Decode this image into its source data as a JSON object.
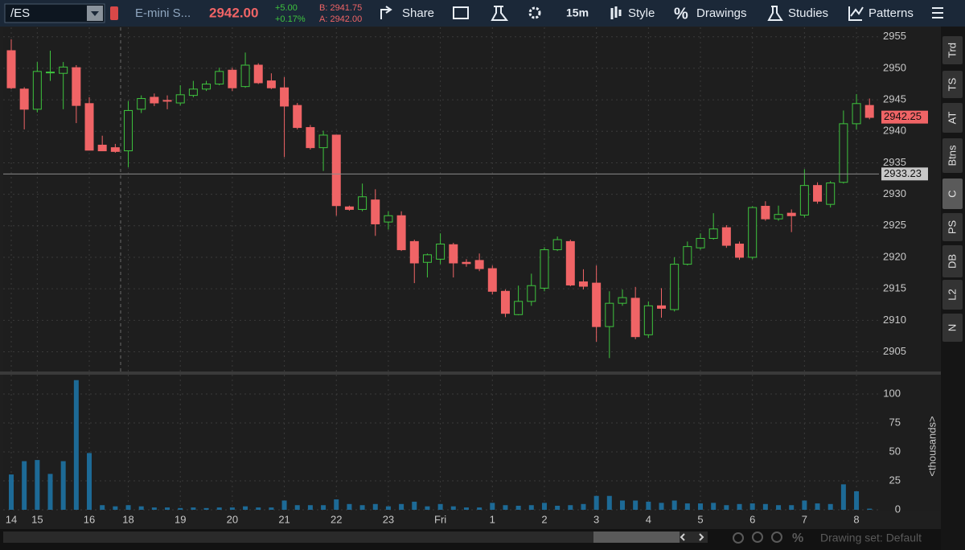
{
  "toolbar": {
    "symbol": "/ES",
    "description": "E-mini S...",
    "last": "2942.00",
    "change": "+5.00",
    "change_pct": "+0.17%",
    "bid": "B: 2941.75",
    "ask": "A: 2942.00",
    "share": "Share",
    "interval": "15m",
    "style": "Style",
    "drawings": "Drawings",
    "studies": "Studies",
    "patterns": "Patterns"
  },
  "side_tabs": [
    "Trd",
    "TS",
    "AT",
    "Btns",
    "C",
    "PS",
    "DB",
    "L2",
    "N"
  ],
  "footer": {
    "drawing_set": "Drawing set: Default"
  },
  "chart_data": [
    {
      "type": "candlestick",
      "up_color": "#3ec43e",
      "down_color": "#f06466",
      "grid": true,
      "categories": [
        "14",
        null,
        "15",
        null,
        null,
        null,
        "16",
        null,
        null,
        "18",
        null,
        null,
        null,
        "19",
        null,
        null,
        null,
        "20",
        null,
        null,
        null,
        "21",
        null,
        null,
        null,
        "22",
        null,
        null,
        null,
        "23",
        null,
        null,
        null,
        "Fri",
        null,
        null,
        null,
        "1",
        null,
        null,
        null,
        "2",
        null,
        null,
        null,
        "3",
        null,
        null,
        null,
        "4",
        null,
        null,
        null,
        "5",
        null,
        null,
        null,
        "6",
        null,
        null,
        null,
        "7",
        null,
        null,
        null,
        "8",
        null
      ],
      "open": [
        2952.8,
        2946.7,
        2943.5,
        2949.3,
        2949.2,
        2950.1,
        2944.4,
        2937.8,
        2937.4,
        2936.9,
        2943.5,
        2945.4,
        2944.9,
        2944.5,
        2945.7,
        2946.7,
        2947.5,
        2949.7,
        2947.1,
        2950.5,
        2948.0,
        2946.9,
        2944.1,
        2940.6,
        2937.4,
        2939.4,
        2928.0,
        2927.6,
        2929.1,
        2925.6,
        2926.6,
        2922.5,
        2919.2,
        2919.7,
        2922.0,
        2919.2,
        2919.5,
        2918.2,
        2914.6,
        2910.9,
        2913.0,
        2915.1,
        2921.2,
        2922.5,
        2916.1,
        2915.9,
        2909.0,
        2912.7,
        2913.5,
        2907.7,
        2912.3,
        2911.7,
        2918.9,
        2921.5,
        2923.0,
        2924.7,
        2922.1,
        2920.0,
        2928.1,
        2926.1,
        2927.0,
        2926.7,
        2931.4,
        2928.4,
        2931.9,
        2941.2,
        2944.1
      ],
      "high": [
        2954.6,
        2947.0,
        2951.0,
        2952.8,
        2951.0,
        2950.5,
        2945.4,
        2939.3,
        2938.0,
        2944.8,
        2945.7,
        2946.0,
        2945.7,
        2947.3,
        2948.0,
        2948.0,
        2950.1,
        2950.1,
        2952.5,
        2950.8,
        2949.2,
        2948.6,
        2944.5,
        2941.0,
        2940.1,
        2939.4,
        2928.2,
        2931.7,
        2930.8,
        2927.3,
        2927.3,
        2922.8,
        2920.6,
        2923.8,
        2922.3,
        2919.7,
        2920.6,
        2918.7,
        2914.9,
        2915.5,
        2917.4,
        2921.6,
        2923.3,
        2922.8,
        2918.1,
        2918.7,
        2914.6,
        2914.9,
        2915.3,
        2913.0,
        2915.1,
        2920.0,
        2922.5,
        2923.8,
        2927.0,
        2925.1,
        2922.5,
        2928.1,
        2928.9,
        2928.2,
        2927.6,
        2934.0,
        2931.9,
        2932.1,
        2943.3,
        2945.9,
        2945.2
      ],
      "low": [
        2946.7,
        2940.3,
        2943.0,
        2948.0,
        2943.5,
        2941.3,
        2937.0,
        2936.9,
        2936.6,
        2934.3,
        2942.9,
        2944.0,
        2943.5,
        2944.1,
        2945.4,
        2946.4,
        2947.3,
        2946.4,
        2946.9,
        2947.5,
        2946.7,
        2935.9,
        2940.3,
        2937.1,
        2933.7,
        2926.6,
        2927.4,
        2927.3,
        2923.4,
        2924.4,
        2921.0,
        2915.9,
        2916.8,
        2918.9,
        2916.8,
        2918.5,
        2917.8,
        2914.1,
        2910.5,
        2910.8,
        2912.3,
        2914.6,
        2921.0,
        2915.4,
        2914.9,
        2906.6,
        2904.0,
        2912.3,
        2907.0,
        2907.2,
        2910.4,
        2911.4,
        2918.7,
        2921.2,
        2922.8,
        2921.5,
        2919.6,
        2919.7,
        2925.8,
        2925.8,
        2924.0,
        2926.3,
        2928.5,
        2927.9,
        2931.7,
        2940.3,
        2941.9
      ],
      "close": [
        2946.9,
        2943.5,
        2949.5,
        2949.4,
        2950.2,
        2944.1,
        2937.0,
        2936.9,
        2936.8,
        2943.3,
        2945.2,
        2944.5,
        2944.8,
        2945.8,
        2946.7,
        2947.5,
        2949.5,
        2946.9,
        2950.5,
        2947.7,
        2946.9,
        2944.0,
        2940.6,
        2937.4,
        2939.4,
        2928.2,
        2927.6,
        2929.6,
        2925.3,
        2926.6,
        2921.2,
        2919.1,
        2920.4,
        2922.1,
        2919.1,
        2919.0,
        2918.2,
        2914.6,
        2911.1,
        2913.0,
        2915.5,
        2921.2,
        2922.8,
        2915.6,
        2915.4,
        2909.0,
        2912.7,
        2913.6,
        2907.4,
        2912.3,
        2911.9,
        2918.9,
        2921.7,
        2923.0,
        2924.5,
        2921.9,
        2920.0,
        2927.9,
        2926.1,
        2926.8,
        2926.6,
        2931.4,
        2928.9,
        2931.8,
        2941.2,
        2944.4,
        2942.2
      ],
      "ylim": [
        2902,
        2956.5
      ],
      "yticks": [
        2905,
        2910,
        2915,
        2920,
        2925,
        2930,
        2935,
        2940,
        2945,
        2950,
        2955
      ],
      "markers": [
        {
          "value": 2933.23,
          "color": "#c8c8c8",
          "line_color": "#8a8a8a"
        },
        {
          "value": 2942.25,
          "color": "#f06466"
        }
      ]
    },
    {
      "type": "bar",
      "y_label": "<thousands>",
      "color": "#1d6a96",
      "values": [
        30.5,
        42,
        43,
        31,
        42,
        112,
        49,
        4,
        3,
        4,
        3,
        2,
        2,
        1.5,
        2,
        1.5,
        2,
        2,
        3,
        2,
        2,
        8,
        4,
        4,
        4,
        9,
        5,
        4,
        5,
        3,
        5,
        7,
        3,
        5,
        3,
        2,
        2,
        6,
        4,
        3.5,
        4,
        6,
        3.5,
        4,
        5,
        12,
        12,
        8,
        8,
        7,
        6,
        8,
        5.5,
        5.5,
        6,
        4,
        5,
        5.5,
        5,
        4,
        4,
        8,
        5.5,
        5,
        22,
        16,
        1
      ],
      "ylim": [
        0,
        116
      ],
      "yticks": [
        0,
        25,
        50,
        75,
        100
      ]
    }
  ]
}
